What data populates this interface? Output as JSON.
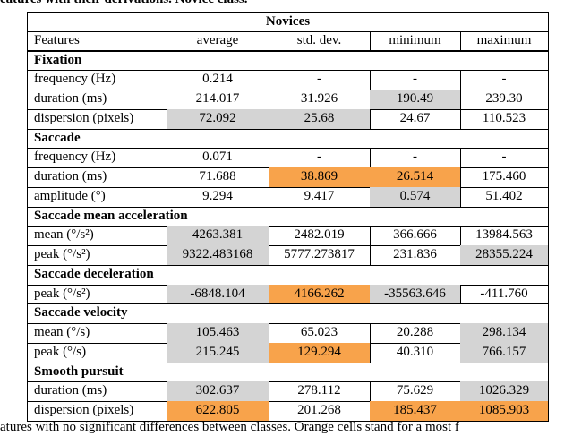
{
  "caption_top": "eatures with their derivations. Novice class.",
  "table": {
    "title": "Novices",
    "header": [
      "Features",
      "average",
      "std. dev.",
      "minimum",
      "maximum"
    ],
    "sections": [
      {
        "title": "Fixation",
        "rows": [
          {
            "cells": [
              "frequency (Hz)",
              "0.214",
              "-",
              "-",
              "-"
            ],
            "shading": [
              null,
              null,
              null,
              null,
              null
            ]
          },
          {
            "cells": [
              "duration (ms)",
              "214.017",
              "31.926",
              "190.49",
              "239.30"
            ],
            "shading": [
              null,
              null,
              null,
              "#d4d4d4",
              null
            ]
          },
          {
            "cells": [
              "dispersion (pixels)",
              "72.092",
              "25.68",
              "24.67",
              "110.523"
            ],
            "shading": [
              null,
              "#d4d4d4",
              "#d4d4d4",
              null,
              null
            ]
          }
        ]
      },
      {
        "title": "Saccade",
        "rows": [
          {
            "cells": [
              "frequency (Hz)",
              "0.071",
              "-",
              "-",
              "-"
            ],
            "shading": [
              null,
              null,
              null,
              null,
              null
            ]
          },
          {
            "cells": [
              "duration (ms)",
              "71.688",
              "38.869",
              "26.514",
              "175.460"
            ],
            "shading": [
              null,
              null,
              "#f8a34b",
              "#f8a34b",
              null
            ]
          },
          {
            "cells": [
              "amplitude (°)",
              "9.294",
              "9.417",
              "0.574",
              "51.402"
            ],
            "shading": [
              null,
              null,
              null,
              "#d4d4d4",
              null
            ]
          }
        ]
      },
      {
        "title": "Saccade mean acceleration",
        "rows": [
          {
            "cells": [
              "mean (°/s²)",
              "4263.381",
              "2482.019",
              "366.666",
              "13984.563"
            ],
            "shading": [
              null,
              "#d4d4d4",
              null,
              null,
              null
            ]
          },
          {
            "cells": [
              "peak (°/s²)",
              "9322.483168",
              "5777.273817",
              "231.836",
              "28355.224"
            ],
            "shading": [
              null,
              "#d4d4d4",
              null,
              null,
              "#d4d4d4"
            ]
          }
        ]
      },
      {
        "title": "Saccade deceleration",
        "rows": [
          {
            "cells": [
              "peak (°/s²)",
              "-6848.104",
              "4166.262",
              "-35563.646",
              "-411.760"
            ],
            "shading": [
              null,
              "#d4d4d4",
              "#f8a34b",
              "#d4d4d4",
              null
            ]
          }
        ]
      },
      {
        "title": "Saccade velocity",
        "rows": [
          {
            "cells": [
              "mean (°/s)",
              "105.463",
              "65.023",
              "20.288",
              "298.134"
            ],
            "shading": [
              null,
              "#d4d4d4",
              null,
              null,
              "#d4d4d4"
            ]
          },
          {
            "cells": [
              "peak (°/s)",
              "215.245",
              "129.294",
              "40.310",
              "766.157"
            ],
            "shading": [
              null,
              "#d4d4d4",
              "#f8a34b",
              null,
              "#d4d4d4"
            ]
          }
        ]
      },
      {
        "title": "Smooth pursuit",
        "rows": [
          {
            "cells": [
              "duration (ms)",
              "302.637",
              "278.112",
              "75.629",
              "1026.329"
            ],
            "shading": [
              null,
              "#d4d4d4",
              null,
              null,
              "#d4d4d4"
            ]
          },
          {
            "cells": [
              "dispersion (pixels)",
              "622.805",
              "201.268",
              "185.437",
              "1085.903"
            ],
            "shading": [
              null,
              "#f8a34b",
              null,
              "#f8a34b",
              "#f8a34b"
            ]
          }
        ]
      }
    ]
  },
  "caption_bottom": "atures with no significant differences between classes. Orange cells stand for a most f"
}
